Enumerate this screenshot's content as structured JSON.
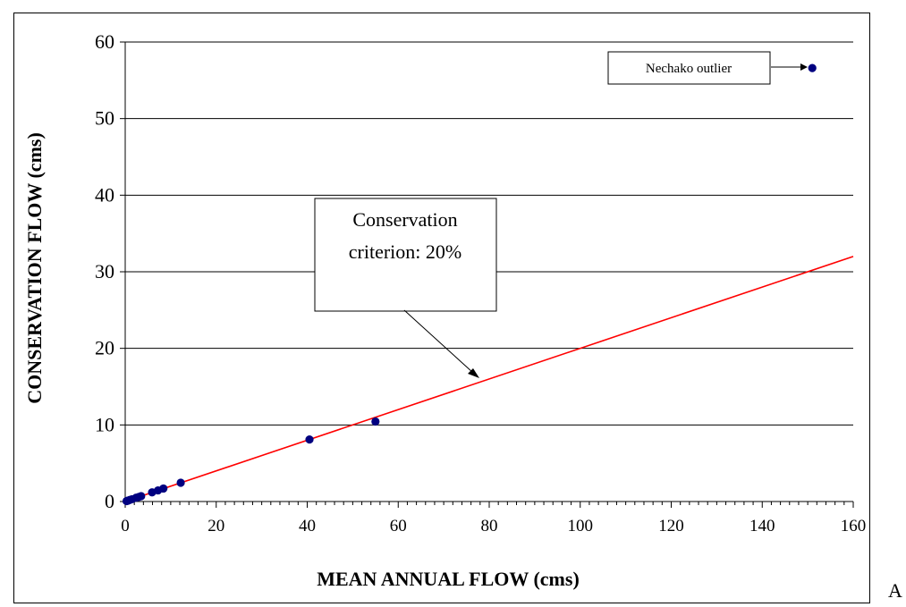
{
  "chart_data": {
    "type": "scatter",
    "xlabel": "MEAN ANNUAL FLOW (cms)",
    "ylabel": "CONSERVATION FLOW (cms)",
    "xlim": [
      0,
      160
    ],
    "ylim": [
      0,
      60
    ],
    "x_ticks": [
      0,
      20,
      40,
      60,
      80,
      100,
      120,
      140,
      160
    ],
    "y_ticks": [
      0,
      10,
      20,
      30,
      40,
      50,
      60
    ],
    "x_tick_labels": [
      "0",
      "20",
      "40",
      "60",
      "80",
      "100",
      "120",
      "140",
      "160"
    ],
    "y_tick_labels": [
      "0",
      "10",
      "20",
      "30",
      "40",
      "50",
      "60"
    ],
    "grid": "horizontal",
    "point_color": "#000080",
    "line_color": "#ff0000",
    "points": [
      {
        "x": 0.3,
        "y": 0.06
      },
      {
        "x": 0.6,
        "y": 0.12
      },
      {
        "x": 1.0,
        "y": 0.2
      },
      {
        "x": 1.5,
        "y": 0.3
      },
      {
        "x": 2.4,
        "y": 0.5
      },
      {
        "x": 3.0,
        "y": 0.6
      },
      {
        "x": 3.5,
        "y": 0.7
      },
      {
        "x": 5.9,
        "y": 1.2
      },
      {
        "x": 7.2,
        "y": 1.45
      },
      {
        "x": 8.4,
        "y": 1.7
      },
      {
        "x": 12.2,
        "y": 2.45
      },
      {
        "x": 40.5,
        "y": 8.1
      },
      {
        "x": 55.0,
        "y": 10.45
      },
      {
        "x": 151.0,
        "y": 56.6
      }
    ],
    "line": {
      "x": [
        0,
        160
      ],
      "y": [
        0,
        32
      ]
    },
    "annotations": [
      {
        "id": "criterion",
        "text_lines": [
          "Conservation",
          "criterion: 20%"
        ]
      },
      {
        "id": "outlier",
        "text_lines": [
          "Nechako outlier"
        ]
      }
    ]
  },
  "side_text": "A"
}
